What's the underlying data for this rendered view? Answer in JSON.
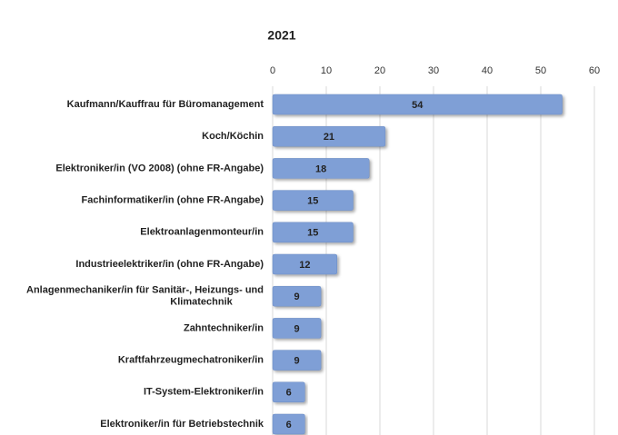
{
  "chart_data": {
    "type": "bar",
    "orientation": "horizontal",
    "title": "2021",
    "categories": [
      "Kaufmann/Kauffrau für Büromanagement",
      "Koch/Köchin",
      "Elektroniker/in (VO 2008) (ohne FR-Angabe)",
      "Fachinformatiker/in (ohne FR-Angabe)",
      "Elektroanlagenmonteur/in",
      "Industrieelektriker/in (ohne FR-Angabe)",
      "Anlagenmechaniker/in für Sanitär-, Heizungs- und Klimatechnik",
      "Zahntechniker/in",
      "Kraftfahrzeugmechatroniker/in",
      "IT-System-Elektroniker/in",
      "Elektroniker/in für Betriebstechnik"
    ],
    "values": [
      54,
      21,
      18,
      15,
      15,
      12,
      9,
      9,
      9,
      6,
      6
    ],
    "color": "#7f9fd6",
    "xlim": [
      0,
      60
    ],
    "xticks": [
      0,
      10,
      20,
      30,
      40,
      50,
      60
    ],
    "grid": true
  }
}
